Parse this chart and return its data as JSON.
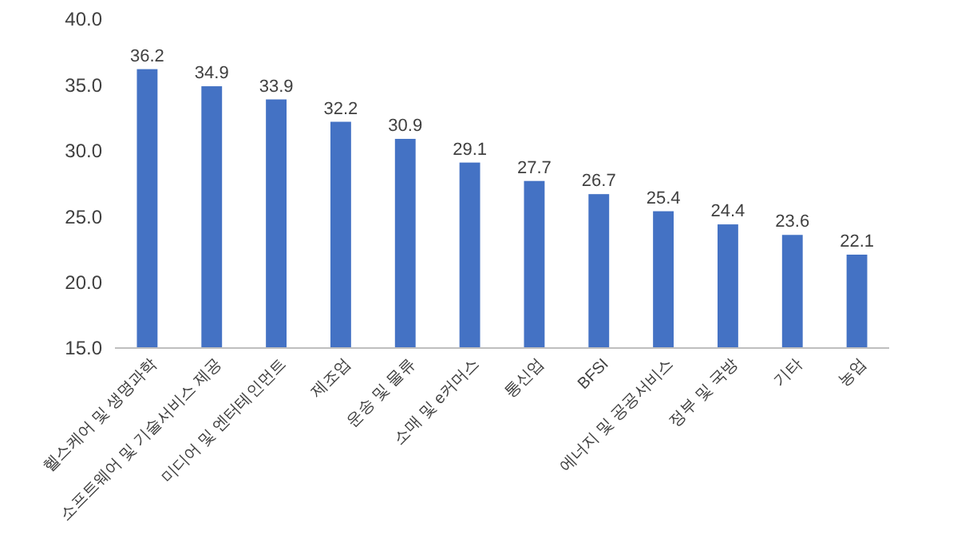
{
  "chart_data": {
    "type": "bar",
    "categories": [
      "헬스케어 및 생명과학",
      "소프트웨어 및 기술서비스 제공",
      "미디어 및 엔터테인먼트",
      "제조업",
      "운송 및 물류",
      "소매 및 e커머스",
      "통신업",
      "BFSI",
      "에너지 및 공공서비스",
      "정부 및 국방",
      "기타",
      "농업"
    ],
    "values": [
      36.2,
      34.9,
      33.9,
      32.2,
      30.9,
      29.1,
      27.7,
      26.7,
      25.4,
      24.4,
      23.6,
      22.1
    ],
    "color": "#4472c4",
    "ylim": [
      15,
      40
    ],
    "yticks": [
      {
        "value": 15,
        "label": "15.0"
      },
      {
        "value": 20,
        "label": "20.0"
      },
      {
        "value": 25,
        "label": "25.0"
      },
      {
        "value": 30,
        "label": "30.0"
      },
      {
        "value": 35,
        "label": "35.0"
      },
      {
        "value": 40,
        "label": "40.0"
      }
    ],
    "data_labels": true,
    "grid": false
  }
}
